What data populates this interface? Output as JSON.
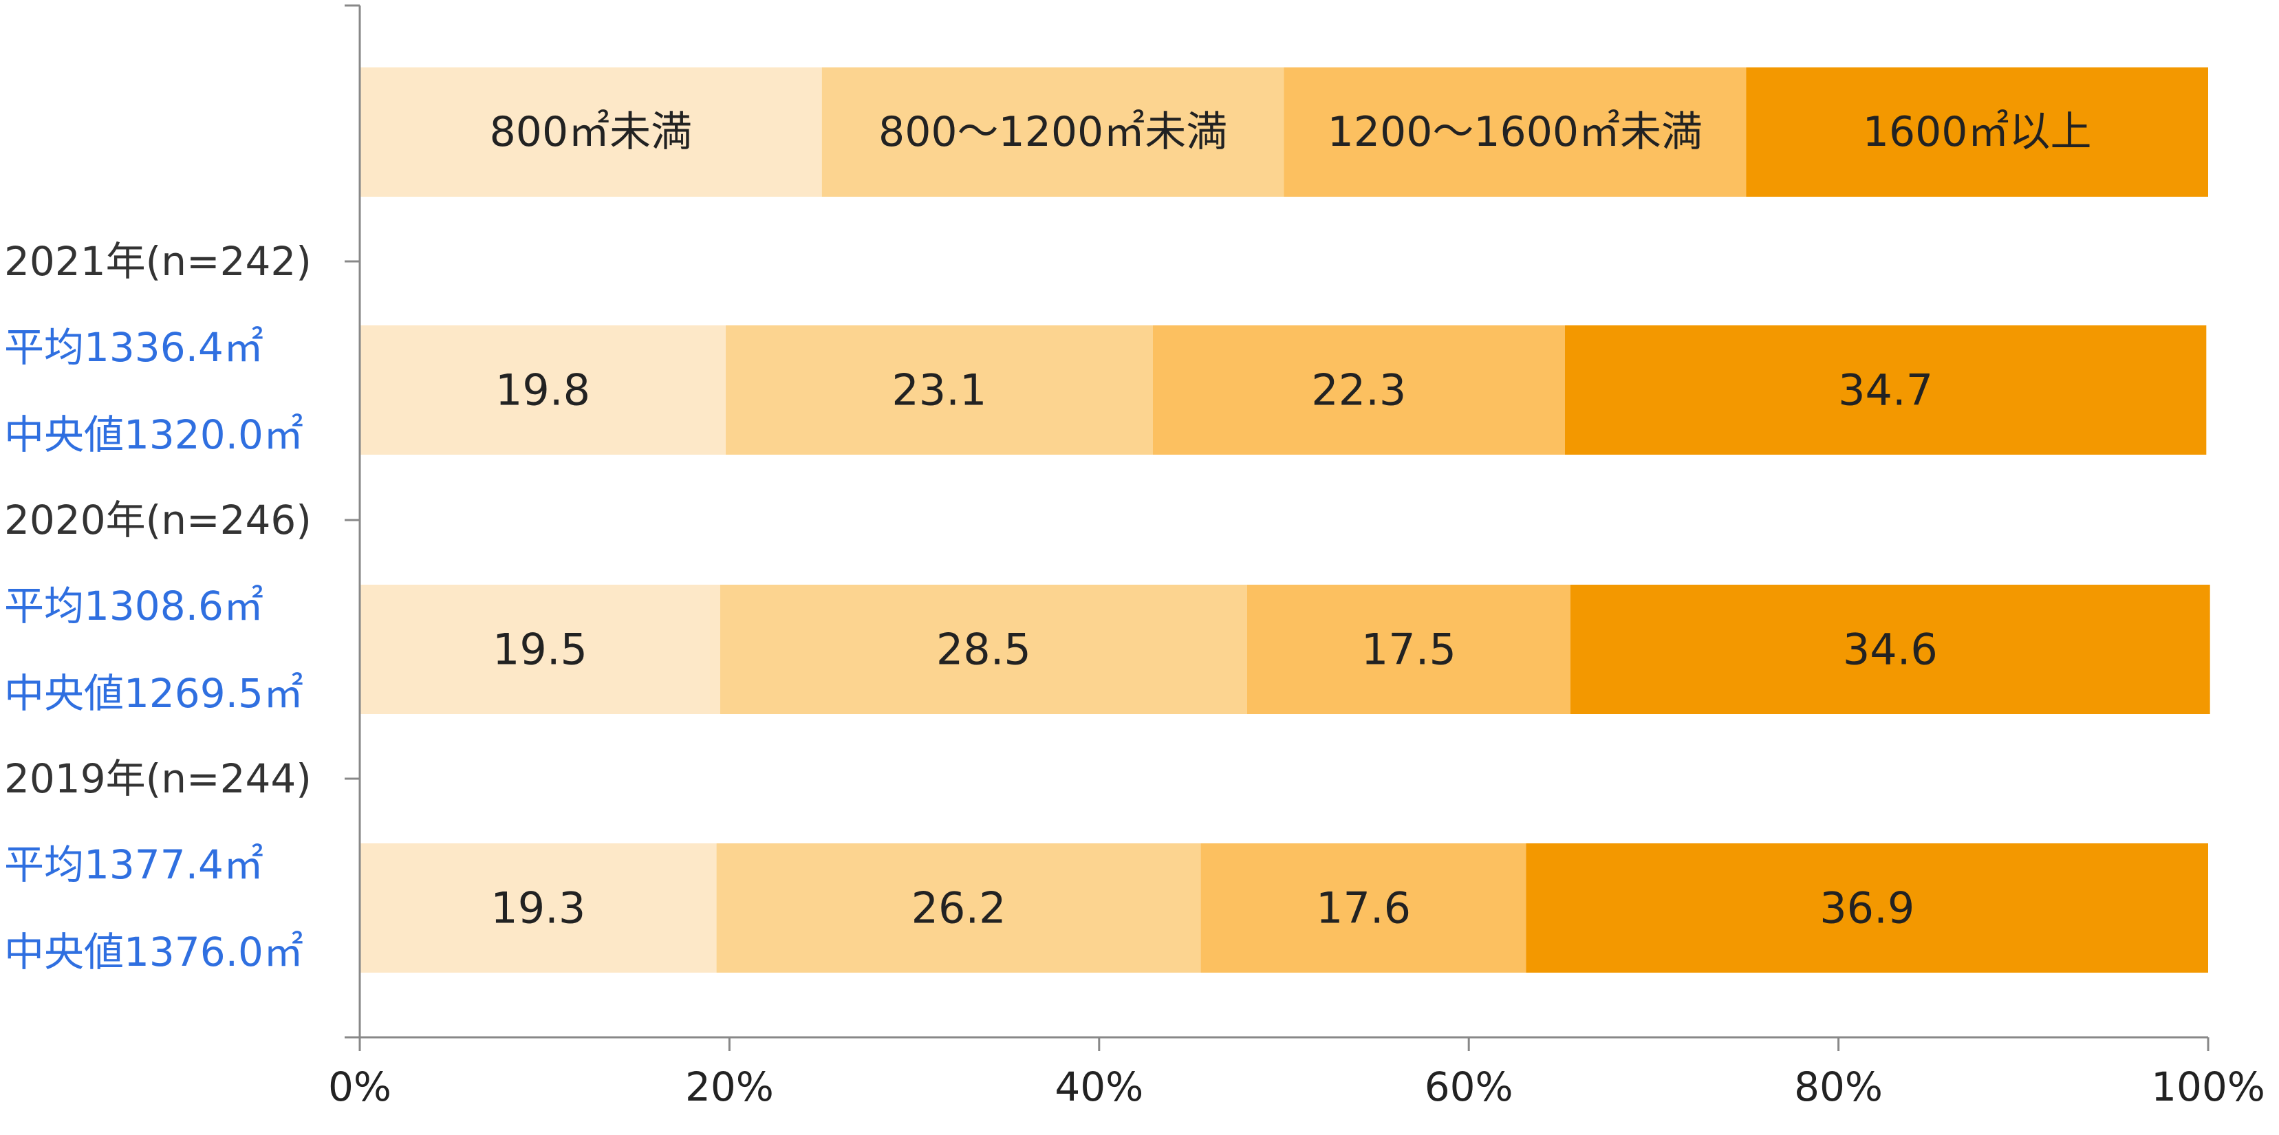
{
  "chart_data": {
    "type": "bar",
    "orientation": "horizontal",
    "stacked": true,
    "xlim": [
      0,
      100
    ],
    "x_ticks": [
      "0%",
      "20%",
      "40%",
      "60%",
      "80%",
      "100%"
    ],
    "grid": false,
    "categories": [
      "800㎡未満",
      "800～1200㎡未満",
      "1200～1600㎡未満",
      "1600㎡以上"
    ],
    "colors": [
      "#fde8c8",
      "#fcd490",
      "#fcc060",
      "#f39800"
    ],
    "legend_position": "top",
    "rows": [
      {
        "label": "2021年(n=242)",
        "mean": "平均1336.4㎡",
        "median": "中央値1320.0㎡",
        "values": [
          19.8,
          23.1,
          22.3,
          34.7
        ]
      },
      {
        "label": "2020年(n=246)",
        "mean": "平均1308.6㎡",
        "median": "中央値1269.5㎡",
        "values": [
          19.5,
          28.5,
          17.5,
          34.6
        ]
      },
      {
        "label": "2019年(n=244)",
        "mean": "平均1377.4㎡",
        "median": "中央値1376.0㎡",
        "values": [
          19.3,
          26.2,
          17.6,
          36.9
        ]
      }
    ]
  }
}
